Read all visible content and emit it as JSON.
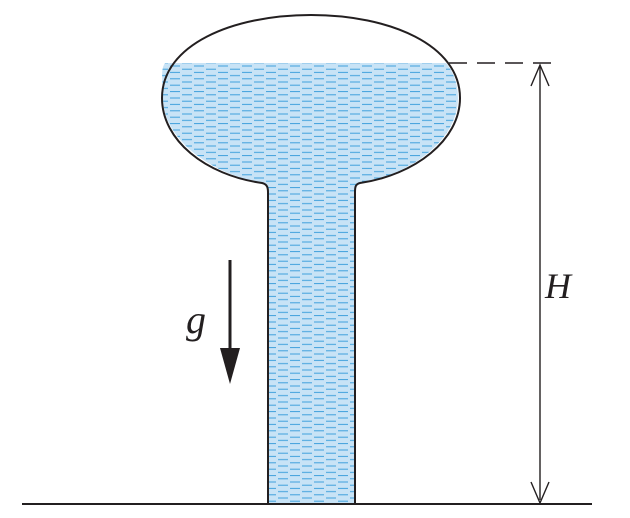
{
  "labels": {
    "gravity": "g",
    "height": "H"
  },
  "colors": {
    "water_fill": "#c8e3f6",
    "water_dashes": "#3fa0dc",
    "outline": "#231f20",
    "background": "#ffffff"
  },
  "icons": {
    "gravity_arrow": "arrow-down-icon",
    "height_dimension": "double-arrow-vertical-icon"
  }
}
